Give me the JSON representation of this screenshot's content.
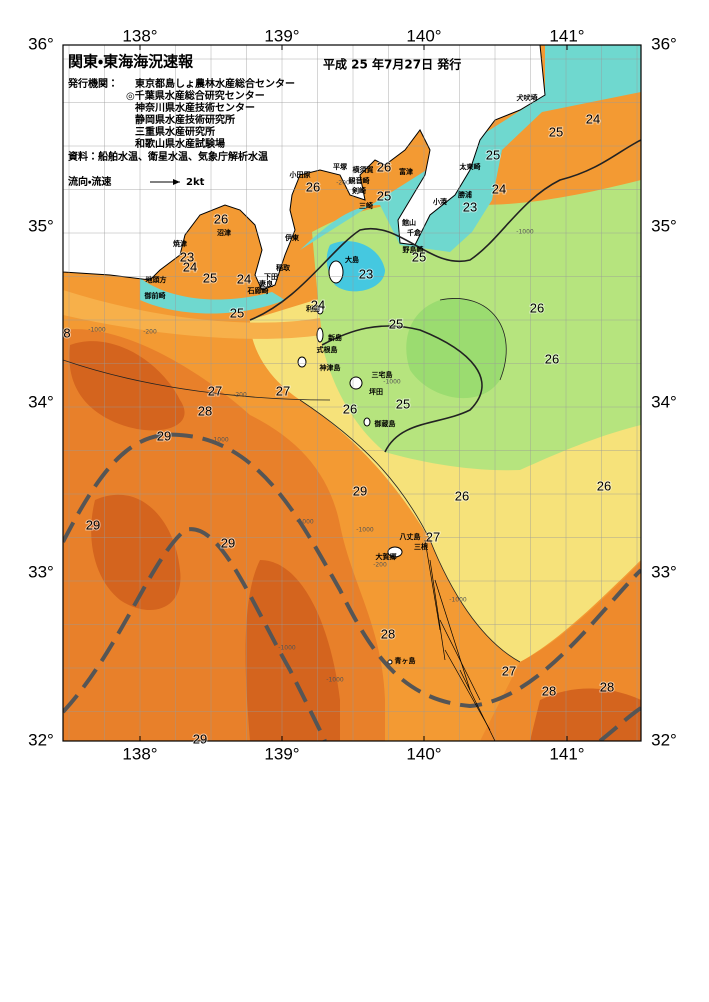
{
  "header": {
    "title": "関東・東海海況速報",
    "issue_date": "平成 25 年7月27日 発行",
    "issuers_label": "発行機関：",
    "issuers": [
      "東京都島しょ農林水産総合センター",
      "◎千葉県水産総合研究センター",
      "神奈川県水産技術センター",
      "静岡県水産技術研究所",
      "三重県水産研究所",
      "和歌山県水産試験場"
    ],
    "sources": "資料：船舶水温、衛星水温、気象庁解析水温",
    "current_label": "流向・流速",
    "current_scale": "2kt"
  },
  "axes": {
    "lon_labels": [
      "138°",
      "139°",
      "140°",
      "141°"
    ],
    "lat_labels": [
      "36°",
      "35°",
      "34°",
      "33°",
      "32°"
    ]
  },
  "place_names": [
    "小田原",
    "平塚",
    "横須賀",
    "富津",
    "観音崎",
    "剣崎",
    "三崎",
    "館山",
    "千倉",
    "野島崎",
    "大島",
    "伊東",
    "稲取",
    "下田",
    "石廊崎",
    "妻良",
    "焼津",
    "沼津",
    "地頭方",
    "御前崎",
    "利島",
    "新島",
    "式根島",
    "神津島",
    "三宅島",
    "坪田",
    "御蔵島",
    "八丈島",
    "大賀郷",
    "三根",
    "青ヶ島",
    "太東崎",
    "勝浦",
    "小湊",
    "犬吠埼"
  ],
  "contour_labels": [
    26,
    23,
    24,
    25,
    24,
    25,
    26,
    26,
    25,
    23,
    25,
    25,
    24,
    25,
    24,
    23,
    24,
    25,
    26,
    26,
    27,
    28,
    27,
    26,
    25,
    29,
    29,
    26,
    26,
    29,
    29,
    27,
    28,
    27,
    28,
    28,
    29,
    8
  ],
  "depth_labels": [
    -200,
    -200,
    -200,
    -200,
    -1000,
    -1000,
    -1000,
    -1000,
    -1000,
    -1000,
    -1000,
    -1000,
    -1000
  ]
}
